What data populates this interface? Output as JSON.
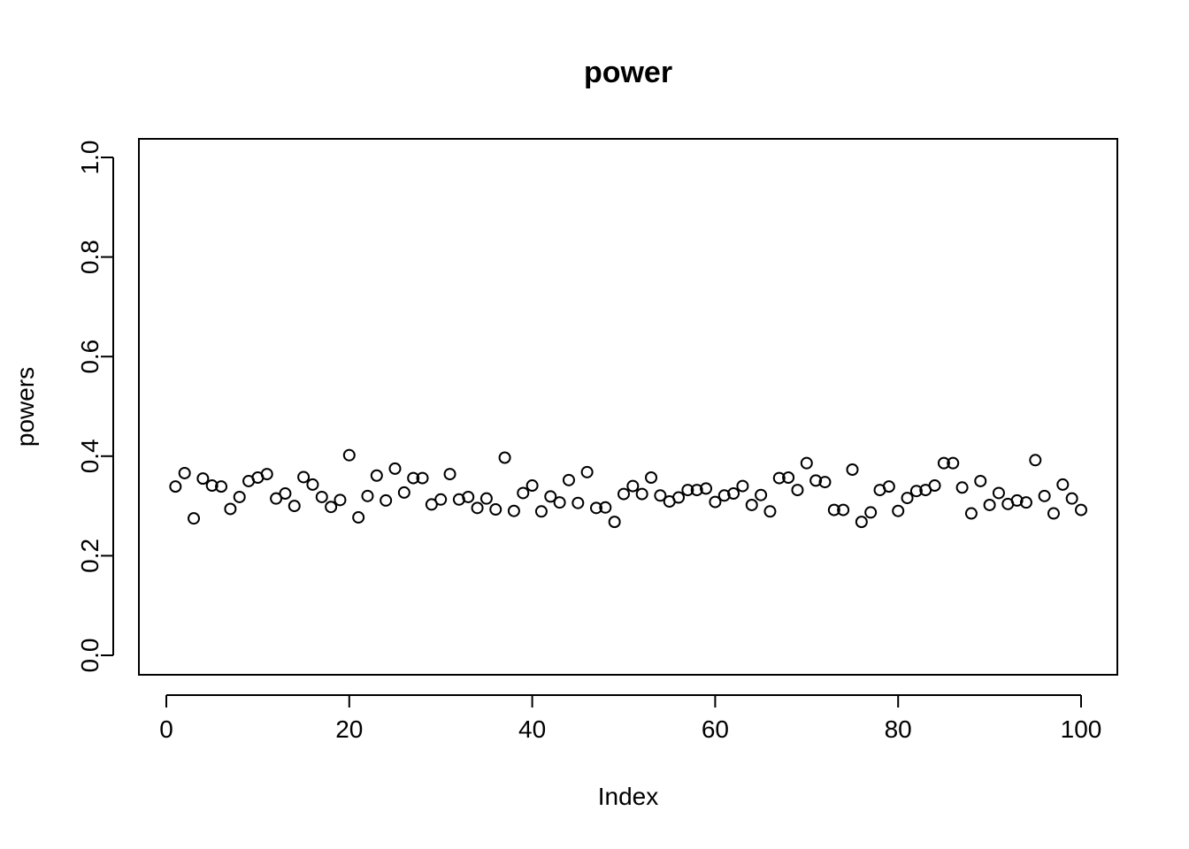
{
  "chart_data": {
    "type": "scatter",
    "title": "power",
    "xlabel": "Index",
    "ylabel": "powers",
    "xlim": [
      0,
      100
    ],
    "ylim": [
      0.0,
      1.0
    ],
    "xticks": [
      "0",
      "20",
      "40",
      "60",
      "80",
      "100"
    ],
    "yticks": [
      "0.0",
      "0.2",
      "0.4",
      "0.6",
      "0.8",
      "1.0"
    ],
    "grid": false,
    "marker": "open-circle",
    "x": [
      1,
      2,
      3,
      4,
      5,
      6,
      7,
      8,
      9,
      10,
      11,
      12,
      13,
      14,
      15,
      16,
      17,
      18,
      19,
      20,
      21,
      22,
      23,
      24,
      25,
      26,
      27,
      28,
      29,
      30,
      31,
      32,
      33,
      34,
      35,
      36,
      37,
      38,
      39,
      40,
      41,
      42,
      43,
      44,
      45,
      46,
      47,
      48,
      49,
      50,
      51,
      52,
      53,
      54,
      55,
      56,
      57,
      58,
      59,
      60,
      61,
      62,
      63,
      64,
      65,
      66,
      67,
      68,
      69,
      70,
      71,
      72,
      73,
      74,
      75,
      76,
      77,
      78,
      79,
      80,
      81,
      82,
      83,
      84,
      85,
      86,
      87,
      88,
      89,
      90,
      91,
      92,
      93,
      94,
      95,
      96,
      97,
      98,
      99,
      100
    ],
    "y": [
      0.339,
      0.366,
      0.275,
      0.355,
      0.341,
      0.339,
      0.294,
      0.318,
      0.35,
      0.357,
      0.364,
      0.315,
      0.325,
      0.3,
      0.358,
      0.343,
      0.318,
      0.298,
      0.312,
      0.402,
      0.277,
      0.32,
      0.361,
      0.311,
      0.375,
      0.327,
      0.356,
      0.356,
      0.303,
      0.313,
      0.364,
      0.313,
      0.318,
      0.296,
      0.315,
      0.293,
      0.397,
      0.29,
      0.326,
      0.341,
      0.289,
      0.319,
      0.307,
      0.352,
      0.306,
      0.368,
      0.296,
      0.297,
      0.268,
      0.324,
      0.34,
      0.324,
      0.357,
      0.321,
      0.309,
      0.317,
      0.332,
      0.332,
      0.335,
      0.308,
      0.321,
      0.325,
      0.34,
      0.302,
      0.322,
      0.289,
      0.356,
      0.357,
      0.332,
      0.386,
      0.351,
      0.348,
      0.292,
      0.292,
      0.373,
      0.268,
      0.287,
      0.332,
      0.339,
      0.29,
      0.316,
      0.33,
      0.332,
      0.341,
      0.386,
      0.386,
      0.337,
      0.285,
      0.35,
      0.302,
      0.326,
      0.304,
      0.311,
      0.307,
      0.392,
      0.32,
      0.285,
      0.343,
      0.315,
      0.292
    ]
  }
}
